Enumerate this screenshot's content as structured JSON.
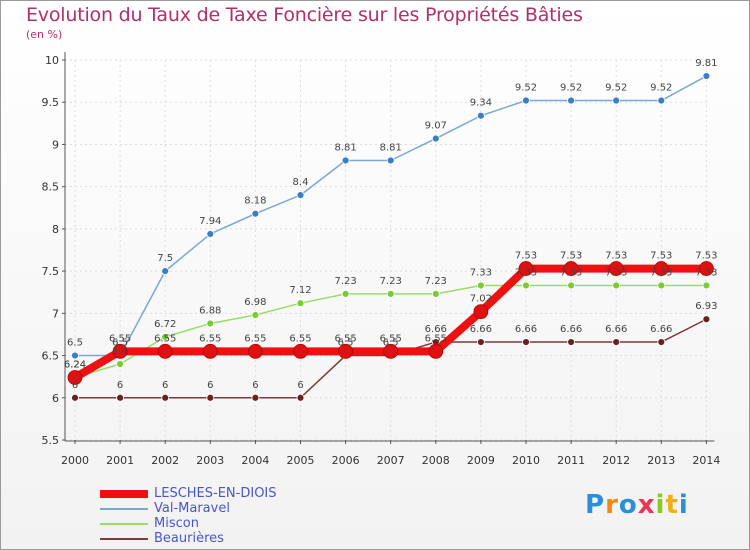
{
  "title": "Evolution du Taux de Taxe Foncière sur les Propriétés Bâties",
  "unit_label": "(en %)",
  "logo_text": "Proxiti",
  "chart_data": {
    "type": "line",
    "categories": [
      "2000",
      "2001",
      "2002",
      "2003",
      "2004",
      "2005",
      "2006",
      "2007",
      "2008",
      "2009",
      "2010",
      "2011",
      "2012",
      "2013",
      "2014"
    ],
    "ylim": [
      5.5,
      10
    ],
    "yticks": [
      "5.5",
      "6",
      "6.5",
      "7",
      "7.5",
      "8",
      "8.5",
      "9",
      "9.5",
      "10"
    ],
    "grid": true,
    "series": [
      {
        "name": "LESCHES-EN-DIOIS",
        "color": "#ee1111",
        "width": 8,
        "marker_color": "#dd1111",
        "marker_r": 7,
        "values": [
          6.24,
          6.55,
          6.55,
          6.55,
          6.55,
          6.55,
          6.55,
          6.55,
          6.55,
          7.02,
          7.53,
          7.53,
          7.53,
          7.53,
          7.53
        ],
        "labels": [
          "6.24",
          "6.55",
          "6.55",
          "6.55",
          "6.55",
          "6.55",
          "6.55",
          "6.55",
          "6.55",
          "7.02",
          "7.53",
          "7.53",
          "7.53",
          "7.53",
          "7.53"
        ]
      },
      {
        "name": "Val-Maravel",
        "color": "#7aa8d4",
        "width": 1.5,
        "marker_color": "#3a7fc0",
        "marker_r": 3.5,
        "values": [
          6.5,
          6.5,
          7.5,
          7.94,
          8.18,
          8.4,
          8.81,
          8.81,
          9.07,
          9.34,
          9.52,
          9.52,
          9.52,
          9.52,
          9.81
        ],
        "labels": [
          "6.5",
          "6.5",
          "7.5",
          "7.94",
          "8.18",
          "8.4",
          "8.81",
          "8.81",
          "9.07",
          "9.34",
          "9.52",
          "9.52",
          "9.52",
          "9.52",
          "9.81"
        ]
      },
      {
        "name": "Miscon",
        "color": "#99dd66",
        "width": 1.5,
        "marker_color": "#77cc33",
        "marker_r": 3.5,
        "values": [
          6.24,
          6.4,
          6.72,
          6.88,
          6.98,
          7.12,
          7.23,
          7.23,
          7.23,
          7.33,
          7.33,
          7.33,
          7.33,
          7.33,
          7.33
        ],
        "labels": [
          "6.24",
          "6.4",
          "6.72",
          "6.88",
          "6.98",
          "7.12",
          "7.23",
          "7.23",
          "7.23",
          "7.33",
          "7.33",
          "7.33",
          "7.33",
          "7.33",
          "7.33"
        ]
      },
      {
        "name": "Beaurières",
        "color": "#7a3a3a",
        "width": 1.5,
        "marker_color": "#6a2020",
        "marker_r": 3.5,
        "values": [
          6,
          6,
          6,
          6,
          6,
          6,
          6.5,
          6.5,
          6.66,
          6.66,
          6.66,
          6.66,
          6.66,
          6.66,
          6.93
        ],
        "labels": [
          "6",
          "6",
          "6",
          "6",
          "6",
          "6",
          "6.5",
          "6.5",
          "6.66",
          "6.66",
          "6.66",
          "6.66",
          "6.66",
          "6.66",
          "6.93"
        ]
      }
    ]
  }
}
